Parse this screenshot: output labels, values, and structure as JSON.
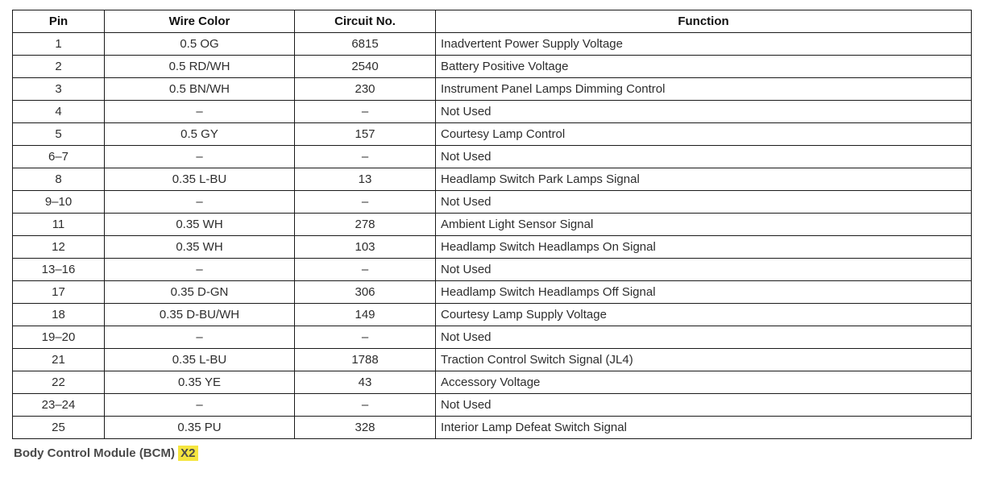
{
  "table": {
    "headers": [
      "Pin",
      "Wire Color",
      "Circuit No.",
      "Function"
    ],
    "rows": [
      [
        "1",
        "0.5 OG",
        "6815",
        "Inadvertent Power Supply Voltage"
      ],
      [
        "2",
        "0.5 RD/WH",
        "2540",
        "Battery Positive Voltage"
      ],
      [
        "3",
        "0.5 BN/WH",
        "230",
        "Instrument Panel Lamps Dimming Control"
      ],
      [
        "4",
        "–",
        "–",
        "Not Used"
      ],
      [
        "5",
        "0.5 GY",
        "157",
        "Courtesy Lamp Control"
      ],
      [
        "6–7",
        "–",
        "–",
        "Not Used"
      ],
      [
        "8",
        "0.35 L-BU",
        "13",
        "Headlamp Switch Park Lamps Signal"
      ],
      [
        "9–10",
        "–",
        "–",
        "Not Used"
      ],
      [
        "11",
        "0.35 WH",
        "278",
        "Ambient Light Sensor Signal"
      ],
      [
        "12",
        "0.35 WH",
        "103",
        "Headlamp Switch Headlamps On Signal"
      ],
      [
        "13–16",
        "–",
        "–",
        "Not Used"
      ],
      [
        "17",
        "0.35 D-GN",
        "306",
        "Headlamp Switch Headlamps Off Signal"
      ],
      [
        "18",
        "0.35 D-BU/WH",
        "149",
        "Courtesy Lamp Supply Voltage"
      ],
      [
        "19–20",
        "–",
        "–",
        "Not Used"
      ],
      [
        "21",
        "0.35 L-BU",
        "1788",
        "Traction Control Switch Signal (JL4)"
      ],
      [
        "22",
        "0.35 YE",
        "43",
        "Accessory Voltage"
      ],
      [
        "23–24",
        "–",
        "–",
        "Not Used"
      ],
      [
        "25",
        "0.35 PU",
        "328",
        "Interior Lamp Defeat Switch Signal"
      ]
    ]
  },
  "caption": {
    "prefix": "Body Control Module (BCM) ",
    "highlighted": "X2"
  },
  "colors": {
    "highlight": "#f5e53f",
    "border": "#1a1a1a",
    "text": "#2d2d2d"
  }
}
